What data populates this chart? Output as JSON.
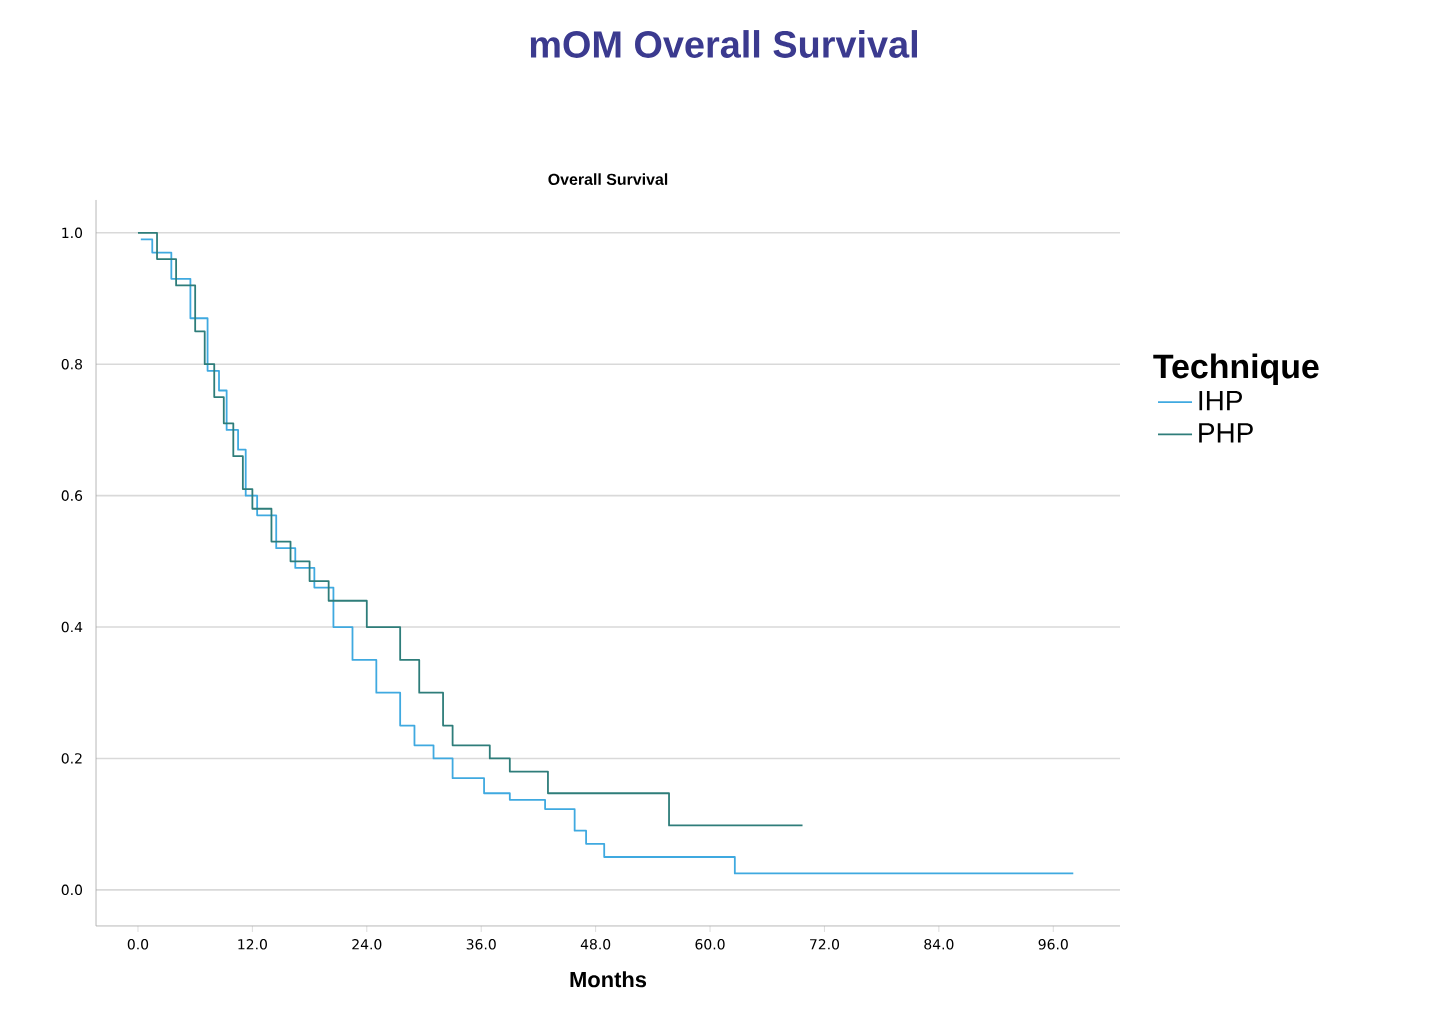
{
  "chart_data": {
    "type": "step",
    "title": "mOM Overall Survival",
    "subtitle": "Overall Survival",
    "xlabel": "Months",
    "legend_title": "Technique",
    "legend": "right",
    "grid": "y",
    "xlim": [
      -4.4,
      103
    ],
    "ylim": [
      -0.055,
      1.05
    ],
    "xticks": [
      {
        "value": 0,
        "label": "0.0"
      },
      {
        "value": 12,
        "label": "12.0"
      },
      {
        "value": 24,
        "label": "24.0"
      },
      {
        "value": 36,
        "label": "36.0"
      },
      {
        "value": 48,
        "label": "48.0"
      },
      {
        "value": 60,
        "label": "60.0"
      },
      {
        "value": 72,
        "label": "72.0"
      },
      {
        "value": 84,
        "label": "84.0"
      },
      {
        "value": 96,
        "label": "96.0"
      }
    ],
    "yticks": [
      {
        "value": 0,
        "label": "0.0"
      },
      {
        "value": 0.2,
        "label": "0.2"
      },
      {
        "value": 0.4,
        "label": "0.4"
      },
      {
        "value": 0.6,
        "label": "0.6"
      },
      {
        "value": 0.8,
        "label": "0.8"
      },
      {
        "value": 1,
        "label": "1.0"
      }
    ],
    "series": [
      {
        "name": "IHP",
        "color": "#3fa9e0",
        "x": [
          0.3,
          1.5,
          3.5,
          5.5,
          7.3,
          8.5,
          9.3,
          10.5,
          11.3,
          12.5,
          14.5,
          16.5,
          18.5,
          20.5,
          22.5,
          25,
          27.5,
          29,
          31,
          33,
          36.3,
          39,
          42.7,
          45.8,
          47,
          48.9,
          62.6,
          98.1
        ],
        "values": [
          0.99,
          0.97,
          0.93,
          0.87,
          0.79,
          0.76,
          0.7,
          0.67,
          0.6,
          0.57,
          0.52,
          0.49,
          0.46,
          0.4,
          0.35,
          0.3,
          0.25,
          0.22,
          0.2,
          0.17,
          0.147,
          0.137,
          0.123,
          0.09,
          0.07,
          0.05,
          0.025,
          0.025
        ]
      },
      {
        "name": "PHP",
        "color": "#2e7d7a",
        "x": [
          0,
          2,
          4,
          6,
          7,
          8,
          9,
          10,
          11,
          12,
          14,
          16,
          18,
          20,
          24,
          27.5,
          29.5,
          32,
          33,
          36.9,
          39,
          43,
          55.7,
          69.7
        ],
        "values": [
          1.0,
          0.96,
          0.92,
          0.85,
          0.8,
          0.75,
          0.71,
          0.66,
          0.61,
          0.58,
          0.53,
          0.5,
          0.47,
          0.44,
          0.4,
          0.35,
          0.3,
          0.25,
          0.22,
          0.2,
          0.18,
          0.147,
          0.098,
          0.098
        ]
      }
    ]
  }
}
